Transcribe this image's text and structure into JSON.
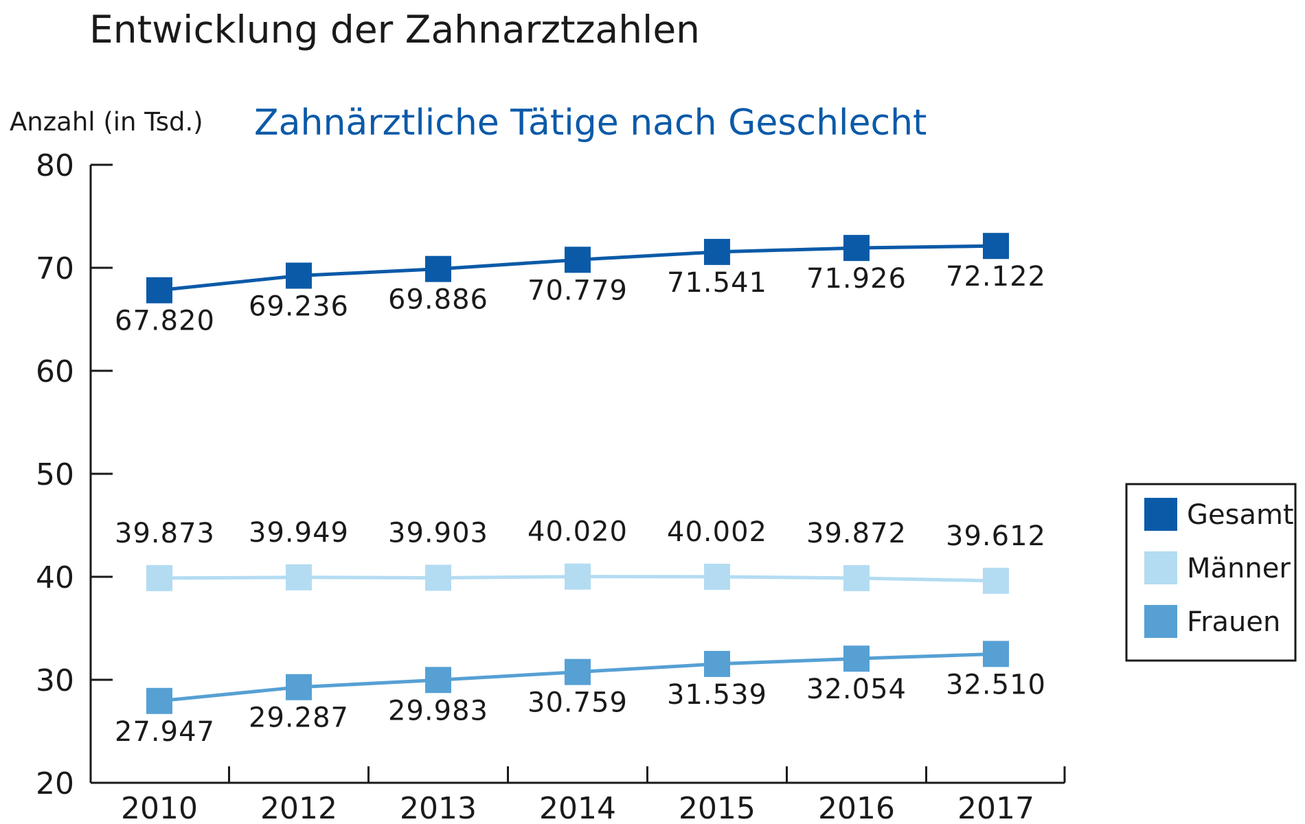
{
  "title": "Entwicklung der Zahnarztzahlen",
  "subtitle": "Zahnärztliche Tätige nach Geschlecht",
  "chart_data": {
    "type": "line",
    "title": "Entwicklung der Zahnarztzahlen",
    "subtitle": "Zahnärztliche Tätige nach Geschlecht",
    "ylabel": "Anzahl (in Tsd.)",
    "xlabel": "",
    "categories": [
      "2010",
      "2012",
      "2013",
      "2014",
      "2015",
      "2016",
      "2017"
    ],
    "ylim": [
      20,
      80
    ],
    "yticks": [
      "80",
      "70",
      "60",
      "50",
      "40",
      "30",
      "20"
    ],
    "legend_position": "right",
    "series": [
      {
        "name": "Gesamt",
        "color": "#0b5aa8",
        "values": [
          67.82,
          69.236,
          69.886,
          70.779,
          71.541,
          71.926,
          72.122
        ],
        "labels": [
          "67.820",
          "69.236",
          "69.886",
          "70.779",
          "71.541",
          "71.926",
          "72.122"
        ]
      },
      {
        "name": "Männer",
        "color": "#b3dcf2",
        "values": [
          39.873,
          39.949,
          39.903,
          40.02,
          40.002,
          39.872,
          39.612
        ],
        "labels": [
          "39.873",
          "39.949",
          "39.903",
          "40.020",
          "40.002",
          "39.872",
          "39.612"
        ]
      },
      {
        "name": "Frauen",
        "color": "#56a0d4",
        "values": [
          27.947,
          29.287,
          29.983,
          30.759,
          31.539,
          32.054,
          32.51
        ],
        "labels": [
          "27.947",
          "29.287",
          "29.983",
          "30.759",
          "31.539",
          "32.054",
          "32.510"
        ]
      }
    ]
  }
}
